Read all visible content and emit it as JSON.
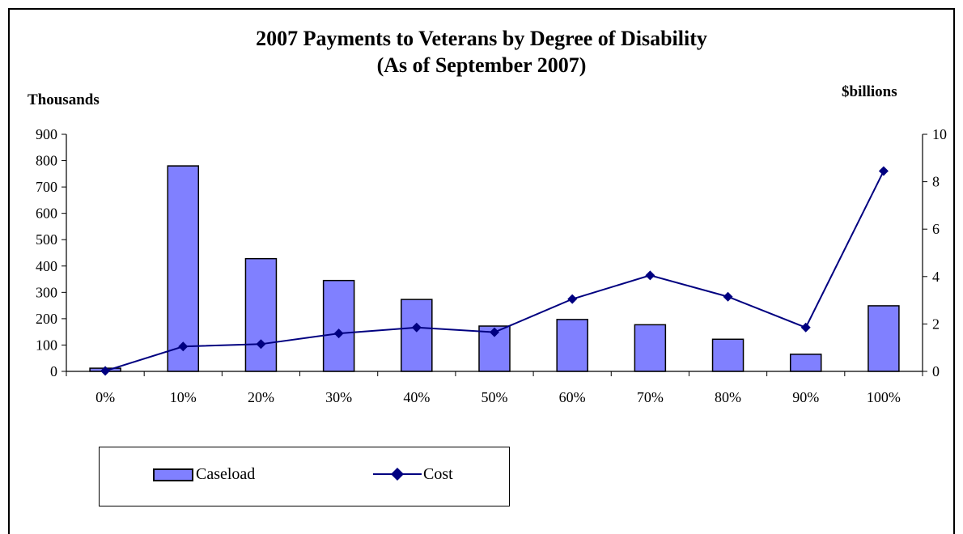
{
  "chart_data": {
    "type": "bar",
    "title": "2007 Payments to Veterans by Degree of Disability",
    "subtitle": "(As of September 2007)",
    "ylabel": "Thousands",
    "ylabel_right": "$billions",
    "categories": [
      "0%",
      "10%",
      "20%",
      "30%",
      "40%",
      "50%",
      "60%",
      "70%",
      "80%",
      "90%",
      "100%"
    ],
    "ylim": [
      0,
      900
    ],
    "yticks": [
      0,
      100,
      200,
      300,
      400,
      500,
      600,
      700,
      800,
      900
    ],
    "ylim_right": [
      0,
      10
    ],
    "yticks_right": [
      0,
      2,
      4,
      6,
      8,
      10
    ],
    "series": [
      {
        "name": "Caseload",
        "type": "bar",
        "axis": "left",
        "color": "#8080ff",
        "values": [
          12,
          780,
          428,
          345,
          273,
          172,
          197,
          177,
          122,
          65,
          249
        ]
      },
      {
        "name": "Cost",
        "type": "line",
        "axis": "right",
        "color": "#000080",
        "marker": "diamond",
        "values": [
          0.02,
          1.05,
          1.15,
          1.6,
          1.85,
          1.65,
          3.05,
          4.05,
          3.15,
          1.85,
          8.45
        ]
      }
    ],
    "grid": false,
    "legend": "bottom-left"
  }
}
